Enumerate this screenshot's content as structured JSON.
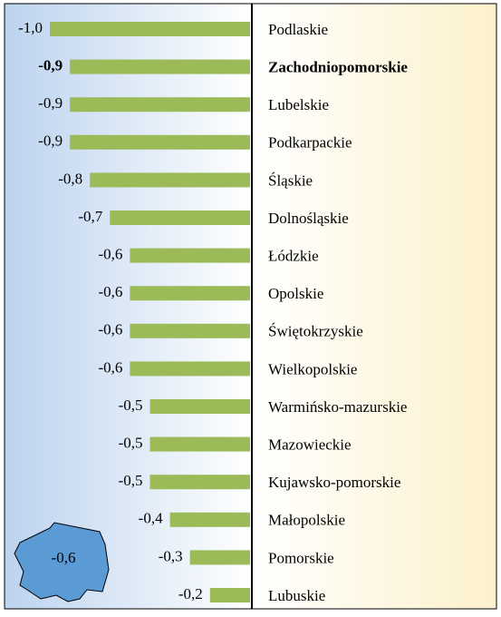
{
  "chart_data": {
    "type": "bar",
    "categories": [
      "Podlaskie",
      "Zachodniopomorskie",
      "Lubelskie",
      "Podkarpackie",
      "Śląskie",
      "Dolnośląskie",
      "Łódzkie",
      "Opolskie",
      "Świętokrzyskie",
      "Wielkopolskie",
      "Warmińsko-mazurskie",
      "Mazowieckie",
      "Kujawsko-pomorskie",
      "Małopolskie",
      "Pomorskie",
      "Lubuskie"
    ],
    "values": [
      -1.0,
      -0.9,
      -0.9,
      -0.9,
      -0.8,
      -0.7,
      -0.6,
      -0.6,
      -0.6,
      -0.6,
      -0.5,
      -0.5,
      -0.5,
      -0.4,
      -0.3,
      -0.2
    ],
    "value_labels": [
      "-1,0",
      "-0,9",
      "-0,9",
      "-0,9",
      "-0,8",
      "-0,7",
      "-0,6",
      "-0,6",
      "-0,6",
      "-0,6",
      "-0,5",
      "-0,5",
      "-0,5",
      "-0,4",
      "-0,3",
      "-0,2"
    ],
    "highlight": 1,
    "color": "#9bbb59",
    "xlim": [
      -1.0,
      0
    ],
    "annotation": "-0,6"
  }
}
